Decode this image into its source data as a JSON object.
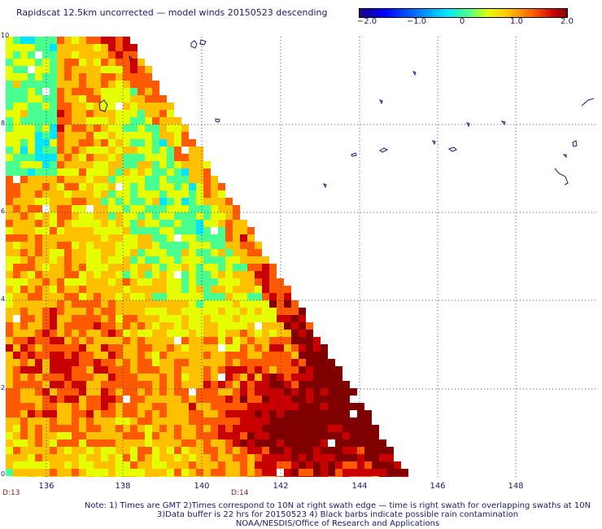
{
  "title": "Rapidscat 12.5km uncorrected — model winds 20150523 descending",
  "colorbar": {
    "ticks": [
      "−2.0",
      "−1.0",
      "0",
      "1.0",
      "2.0"
    ],
    "colors": [
      "#1a0080",
      "#0000ff",
      "#0078ff",
      "#00e6ff",
      "#48ff90",
      "#e6ff00",
      "#ffc000",
      "#ff5a00",
      "#c80000",
      "#800000"
    ]
  },
  "map": {
    "lon_ticks": [
      "136",
      "138",
      "140",
      "142",
      "144",
      "146",
      "148"
    ],
    "lat_ticks": [
      "10",
      "8",
      "6",
      "4",
      "2",
      "0"
    ],
    "times": [
      "D:13",
      "D:14"
    ],
    "swath_edge": "triangular swath, diagonal lower-right edge",
    "grid": "dotted lines every 2 degrees"
  },
  "notes": [
    "Note: 1) Times are GMT 2)Times correspond to 10N at right swath edge — time is right swath for overlapping swaths at 10N",
    "3)Data buffer is 22 hrs for 20150523 4) Black barbs indicate possible rain contamination",
    "NOAA/NESDIS/Office of Research and Applications"
  ]
}
